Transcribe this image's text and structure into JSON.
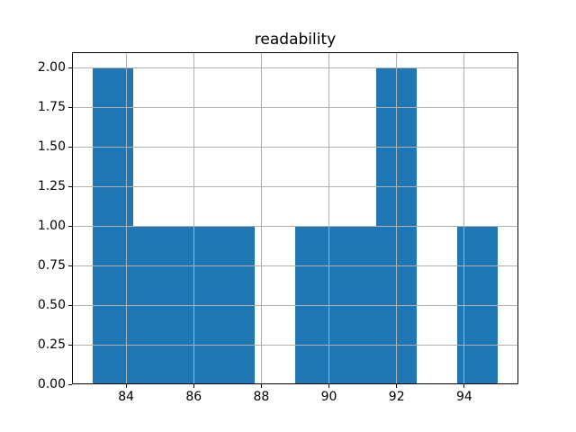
{
  "chart_data": {
    "type": "bar",
    "subtype": "histogram",
    "title": "readability",
    "xlabel": "",
    "ylabel": "",
    "bin_edges": [
      83.0,
      84.2,
      85.4,
      86.6,
      87.8,
      89.0,
      90.2,
      91.4,
      92.6,
      93.8,
      95.0
    ],
    "counts": [
      2,
      1,
      1,
      1,
      0,
      1,
      1,
      2,
      0,
      1
    ],
    "xticks": [
      84,
      86,
      88,
      90,
      92,
      94
    ],
    "xtick_labels": [
      "84",
      "86",
      "88",
      "90",
      "92",
      "94"
    ],
    "yticks": [
      0.0,
      0.25,
      0.5,
      0.75,
      1.0,
      1.25,
      1.5,
      1.75,
      2.0
    ],
    "ytick_labels": [
      "0.00",
      "0.25",
      "0.50",
      "0.75",
      "1.00",
      "1.25",
      "1.50",
      "1.75",
      "2.00"
    ],
    "xlim": [
      82.4,
      95.6
    ],
    "ylim": [
      0.0,
      2.1
    ],
    "grid": true,
    "grid_over_bars": true,
    "legend": "none",
    "colors": {
      "bar": "#1f77b4",
      "grid": "#b0b0b0",
      "spine": "#000000",
      "text": "#000000",
      "background": "#ffffff"
    }
  }
}
